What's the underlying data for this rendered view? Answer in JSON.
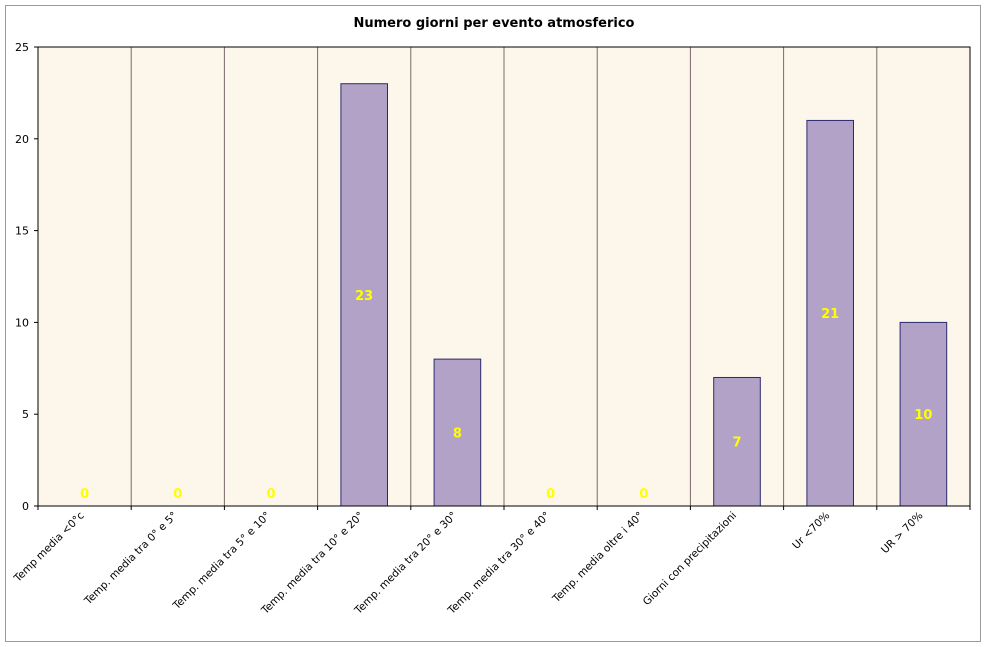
{
  "chart_data": {
    "type": "bar",
    "title": "Numero giorni per evento atmosferico",
    "xlabel": "",
    "ylabel": "",
    "categories": [
      "Temp media <0°c",
      "Temp. media tra 0° e 5°",
      "Temp. media tra 5° e 10°",
      "Temp. media tra 10° e 20°",
      "Temp. media tra 20° e 30°",
      "Temp. media tra 30° e 40°",
      "Temp. media oltre i 40°",
      "Giorni con precipitazioni",
      "Ur <70%",
      "UR > 70%"
    ],
    "values": [
      0,
      0,
      0,
      23,
      8,
      0,
      0,
      7,
      21,
      10
    ],
    "data_labels": [
      "0",
      "0",
      "0",
      "23",
      "8",
      "0",
      "0",
      "7",
      "21",
      "10"
    ],
    "ylim": [
      0,
      25
    ],
    "yticks": [
      0,
      5,
      10,
      15,
      20,
      25
    ],
    "ytick_labels": [
      "0",
      "5",
      "10",
      "15",
      "20",
      "25"
    ],
    "grid": "vertical separators between categories",
    "legend": "none",
    "colors": {
      "bar_fill": "#b3a2c7",
      "bar_stroke": "#2a2a6e",
      "plot_background": "#fcf7ea",
      "data_label": "#ffff00",
      "gridline": "#7a6a6a",
      "axis": "#000000"
    }
  }
}
